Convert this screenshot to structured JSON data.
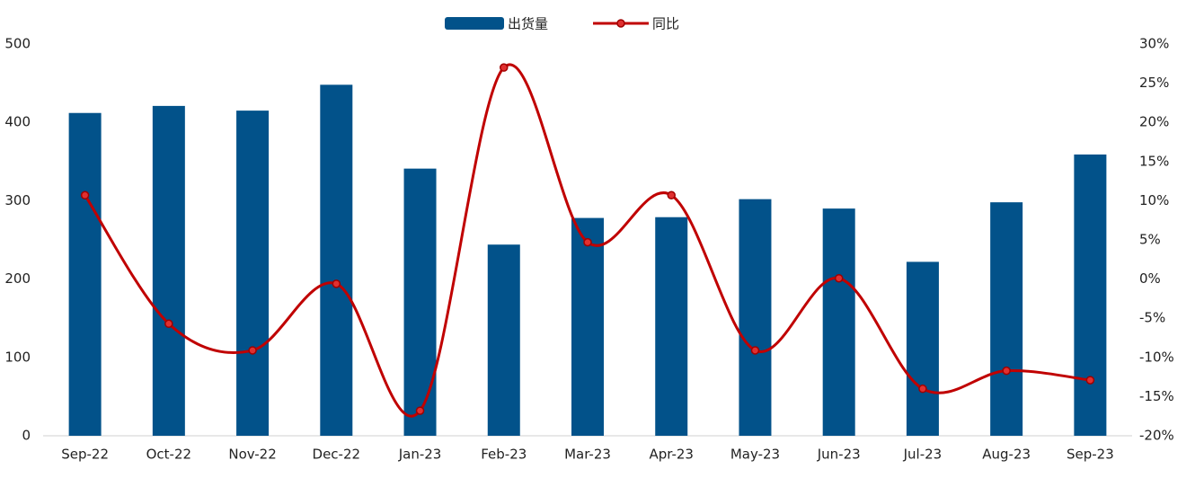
{
  "chart_data": {
    "type": "bar-line",
    "categories": [
      "Sep-22",
      "Oct-22",
      "Nov-22",
      "Dec-22",
      "Jan-23",
      "Feb-23",
      "Mar-23",
      "Apr-23",
      "May-23",
      "Jun-23",
      "Jul-23",
      "Aug-23",
      "Sep-23"
    ],
    "series": [
      {
        "name": "出货量",
        "type": "bar",
        "color": "#02528a",
        "values": [
          412,
          421,
          415,
          448,
          341,
          244,
          278,
          279,
          302,
          290,
          222,
          298,
          359
        ]
      },
      {
        "name": "同比",
        "type": "line",
        "axis": "y2",
        "color": "#c00000",
        "values": [
          10.7,
          -5.7,
          -9.1,
          -0.6,
          -16.8,
          27.0,
          4.7,
          10.7,
          -9.1,
          0.1,
          -14.0,
          -11.7,
          -12.9
        ]
      }
    ],
    "ylim": [
      0,
      500
    ],
    "yticks": [
      0,
      100,
      200,
      300,
      400,
      500
    ],
    "y2lim": [
      -20,
      30
    ],
    "y2ticks": [
      {
        "value": -20,
        "label": "-20%"
      },
      {
        "value": -15,
        "label": "-15%"
      },
      {
        "value": -10,
        "label": "-10%"
      },
      {
        "value": -5,
        "label": "-5%"
      },
      {
        "value": 0,
        "label": "0%"
      },
      {
        "value": 5,
        "label": "5%"
      },
      {
        "value": 10,
        "label": "10%"
      },
      {
        "value": 15,
        "label": "15%"
      },
      {
        "value": 20,
        "label": "20%"
      },
      {
        "value": 25,
        "label": "25%"
      },
      {
        "value": 30,
        "label": "30%"
      }
    ],
    "legend": "top"
  }
}
